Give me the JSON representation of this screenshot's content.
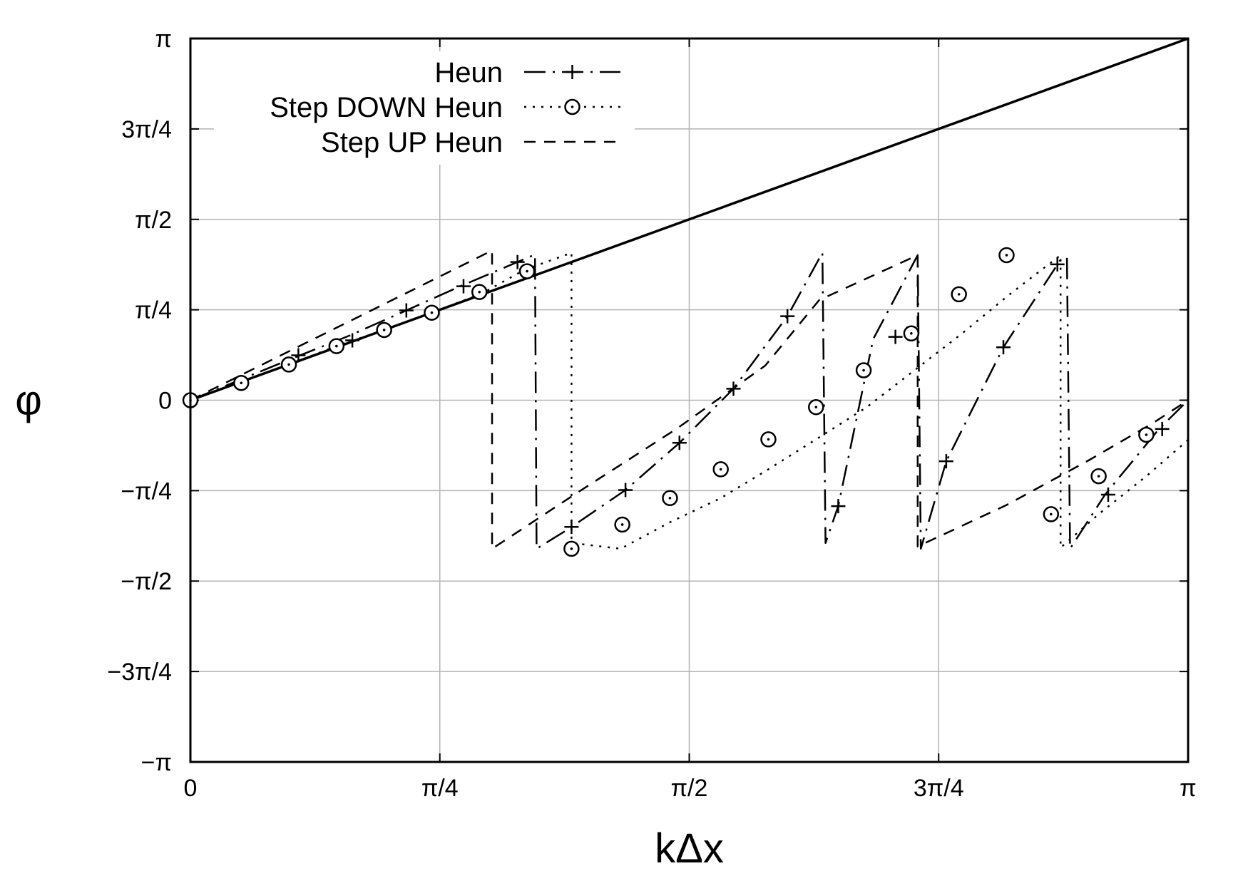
{
  "chart_data": {
    "type": "line",
    "xlabel": "kΔx",
    "ylabel": "φ",
    "xlim": [
      0,
      3.14159265
    ],
    "ylim": [
      -3.14159265,
      3.14159265
    ],
    "grid": true,
    "legend_position": "top-left",
    "x_ticks": [
      {
        "value": 0,
        "label": "0"
      },
      {
        "value": 0.785398,
        "label": "π/4"
      },
      {
        "value": 1.570796,
        "label": "π/2"
      },
      {
        "value": 2.356194,
        "label": "3π/4"
      },
      {
        "value": 3.141593,
        "label": "π"
      }
    ],
    "y_ticks": [
      {
        "value": 3.141593,
        "label": "π"
      },
      {
        "value": 2.356194,
        "label": "3π/4"
      },
      {
        "value": 1.570796,
        "label": "π/2"
      },
      {
        "value": 0.785398,
        "label": "π/4"
      },
      {
        "value": 0,
        "label": "0"
      },
      {
        "value": -0.785398,
        "label": "−π/4"
      },
      {
        "value": -1.570796,
        "label": "−π/2"
      },
      {
        "value": -2.356194,
        "label": "−3π/4"
      },
      {
        "value": -3.141593,
        "label": "−π"
      }
    ],
    "series": [
      {
        "key": "exact",
        "style": "solid",
        "marker": "none",
        "points": [
          [
            0,
            0
          ],
          [
            3.1416,
            3.1416
          ]
        ]
      },
      {
        "key": "heun",
        "name": "Heun",
        "style": "dashdot",
        "marker": "plus",
        "points": [
          [
            0,
            0
          ],
          [
            0.3,
            0.34
          ],
          [
            0.5,
            0.56
          ],
          [
            0.68,
            0.78
          ],
          [
            0.85,
            0.99
          ],
          [
            1.03,
            1.2
          ],
          [
            1.085,
            1.265
          ],
          [
            1.09,
            -1.29
          ],
          [
            1.19,
            -1.12
          ],
          [
            1.37,
            -0.78
          ],
          [
            1.54,
            -0.37
          ],
          [
            1.71,
            0.1
          ],
          [
            1.88,
            0.73
          ],
          [
            1.99,
            1.28
          ],
          [
            2.0,
            -1.24
          ],
          [
            2.04,
            -0.92
          ],
          [
            2.15,
            0.53
          ],
          [
            2.29,
            1.26
          ],
          [
            2.3,
            -1.29
          ],
          [
            2.38,
            -0.53
          ],
          [
            2.56,
            0.46
          ],
          [
            2.74,
            1.22
          ],
          [
            2.76,
            1.24
          ],
          [
            2.77,
            -1.29
          ],
          [
            2.88,
            -0.82
          ],
          [
            3.05,
            -0.25
          ],
          [
            3.1416,
            0
          ]
        ],
        "markers": [
          [
            0,
            0
          ],
          [
            0.34,
            0.39
          ],
          [
            0.51,
            0.52
          ],
          [
            0.68,
            0.78
          ],
          [
            0.86,
            0.99
          ],
          [
            1.03,
            1.2
          ],
          [
            1.2,
            -1.1
          ],
          [
            1.37,
            -0.78
          ],
          [
            1.54,
            -0.37
          ],
          [
            1.71,
            0.1
          ],
          [
            1.88,
            0.73
          ],
          [
            2.04,
            -0.92
          ],
          [
            2.22,
            0.55
          ],
          [
            2.38,
            -0.53
          ],
          [
            2.56,
            0.46
          ],
          [
            2.73,
            1.18
          ],
          [
            2.89,
            -0.82
          ],
          [
            3.06,
            -0.25
          ]
        ]
      },
      {
        "key": "down",
        "name": "Step DOWN Heun",
        "style": "dotted",
        "marker": "circle",
        "points": [
          [
            0,
            0
          ],
          [
            0.15,
            0.15
          ],
          [
            0.31,
            0.31
          ],
          [
            0.46,
            0.47
          ],
          [
            0.61,
            0.61
          ],
          [
            0.76,
            0.76
          ],
          [
            0.92,
            0.93
          ],
          [
            1.05,
            1.13
          ],
          [
            1.2,
            1.28
          ],
          [
            1.2,
            -1.24
          ],
          [
            1.355,
            -1.29
          ],
          [
            1.51,
            -1.06
          ],
          [
            1.67,
            -0.85
          ],
          [
            1.82,
            -0.6
          ],
          [
            1.97,
            -0.34
          ],
          [
            2.13,
            -0.06
          ],
          [
            2.28,
            0.26
          ],
          [
            2.43,
            0.58
          ],
          [
            2.58,
            0.92
          ],
          [
            2.74,
            1.26
          ],
          [
            2.74,
            -1.28
          ],
          [
            2.86,
            -0.99
          ],
          [
            3.01,
            -0.66
          ],
          [
            3.16,
            -0.3
          ]
        ],
        "markers": [
          [
            0,
            0
          ],
          [
            0.16,
            0.15
          ],
          [
            0.31,
            0.31
          ],
          [
            0.46,
            0.47
          ],
          [
            0.61,
            0.61
          ],
          [
            0.76,
            0.76
          ],
          [
            0.91,
            0.94
          ],
          [
            1.06,
            1.12
          ],
          [
            1.2,
            -1.29
          ],
          [
            1.36,
            -1.08
          ],
          [
            1.51,
            -0.85
          ],
          [
            1.67,
            -0.6
          ],
          [
            1.82,
            -0.34
          ],
          [
            1.97,
            -0.06
          ],
          [
            2.12,
            0.26
          ],
          [
            2.27,
            0.58
          ],
          [
            2.42,
            0.92
          ],
          [
            2.57,
            1.26
          ],
          [
            2.71,
            -0.99
          ],
          [
            2.86,
            -0.66
          ],
          [
            3.01,
            -0.3
          ]
        ]
      },
      {
        "key": "up",
        "name": "Step UP Heun",
        "style": "dashed",
        "marker": "none",
        "points": [
          [
            0,
            0
          ],
          [
            0.95,
            1.3
          ],
          [
            0.95,
            -1.29
          ],
          [
            1.22,
            -0.8
          ],
          [
            1.53,
            -0.25
          ],
          [
            1.81,
            0.3
          ],
          [
            1.98,
            0.87
          ],
          [
            2.29,
            1.26
          ],
          [
            2.29,
            -1.27
          ],
          [
            2.57,
            -0.91
          ],
          [
            2.83,
            -0.52
          ],
          [
            3.03,
            -0.2
          ],
          [
            3.1416,
            0
          ]
        ],
        "markers": []
      }
    ]
  }
}
